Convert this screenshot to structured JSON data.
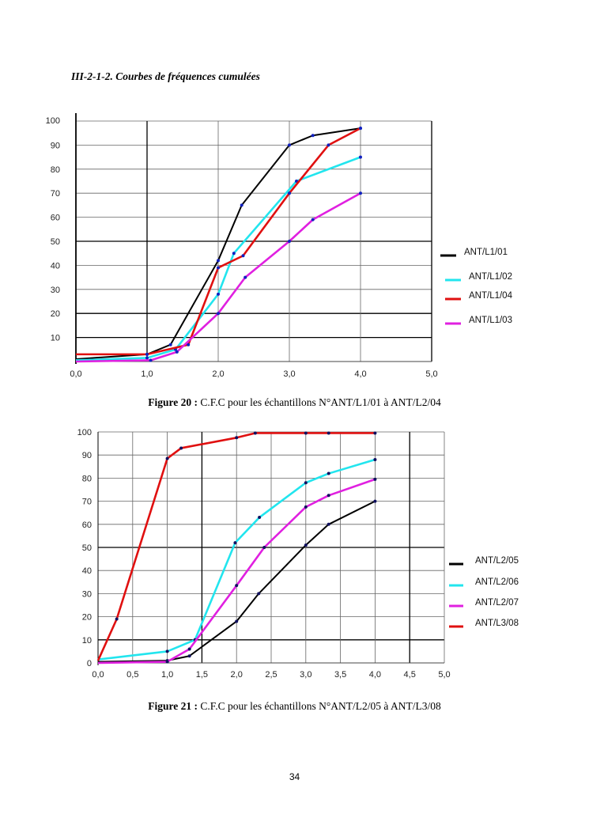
{
  "section_title": "III-2-1-2. Courbes de fréquences cumulées",
  "page_number": "34",
  "figures": [
    {
      "caption_label": "Figure 20 :",
      "caption_text": " C.F.C pour les échantillons N°ANT/L1/01 à ANT/L2/04"
    },
    {
      "caption_label": "Figure 21 :",
      "caption_text": " C.F.C pour les échantillons N°ANT/L2/05 à ANT/L3/08"
    }
  ],
  "chart_data": [
    {
      "type": "line",
      "title": "",
      "xlabel": "",
      "ylabel": "",
      "xlim": [
        0,
        5
      ],
      "ylim": [
        0,
        100
      ],
      "x_ticks": [
        "0,0",
        "1,0",
        "2,0",
        "3,0",
        "4,0",
        "5,0"
      ],
      "x_tick_values": [
        0,
        1,
        2,
        3,
        4,
        5
      ],
      "y_ticks": [
        "10",
        "20",
        "30",
        "40",
        "50",
        "60",
        "70",
        "80",
        "90",
        "100"
      ],
      "y_tick_values": [
        10,
        20,
        30,
        40,
        50,
        60,
        70,
        80,
        90,
        100
      ],
      "grid": true,
      "legend_position": "right",
      "series": [
        {
          "name": "ANT/L1/01",
          "color": "#000000",
          "points": [
            [
              0,
              1
            ],
            [
              1,
              3
            ],
            [
              1.33,
              7
            ],
            [
              2,
              42
            ],
            [
              2.33,
              65
            ],
            [
              3,
              90
            ],
            [
              3.33,
              94
            ],
            [
              4,
              97
            ]
          ]
        },
        {
          "name": "ANT/L1/02",
          "color": "#22e5ee",
          "points": [
            [
              0,
              0.5
            ],
            [
              1,
              1.5
            ],
            [
              1.4,
              5
            ],
            [
              2,
              28
            ],
            [
              2.22,
              45
            ],
            [
              3.1,
              75
            ],
            [
              4,
              85
            ]
          ]
        },
        {
          "name": "ANT/L1/04",
          "color": "#e01010",
          "points": [
            [
              0,
              3
            ],
            [
              1,
              3
            ],
            [
              1.58,
              7
            ],
            [
              2,
              39
            ],
            [
              2.35,
              44
            ],
            [
              3,
              70
            ],
            [
              3.55,
              90
            ],
            [
              4,
              97
            ]
          ]
        },
        {
          "name": "ANT/L1/03",
          "color": "#e020e0",
          "points": [
            [
              0,
              0
            ],
            [
              1.05,
              0.5
            ],
            [
              1.42,
              4
            ],
            [
              2,
              20
            ],
            [
              2.38,
              35
            ],
            [
              3,
              50
            ],
            [
              3.33,
              59
            ],
            [
              4,
              70
            ]
          ]
        }
      ]
    },
    {
      "type": "line",
      "title": "",
      "xlabel": "",
      "ylabel": "",
      "xlim": [
        0,
        5
      ],
      "ylim": [
        0,
        100
      ],
      "x_ticks": [
        "0,0",
        "0,5",
        "1,0",
        "1,5",
        "2,0",
        "2,5",
        "3,0",
        "3,5",
        "4,0",
        "4,5",
        "5,0"
      ],
      "x_tick_values": [
        0,
        0.5,
        1,
        1.5,
        2,
        2.5,
        3,
        3.5,
        4,
        4.5,
        5
      ],
      "y_ticks": [
        "0",
        "10",
        "20",
        "30",
        "40",
        "50",
        "60",
        "70",
        "80",
        "90",
        "100"
      ],
      "y_tick_values": [
        0,
        10,
        20,
        30,
        40,
        50,
        60,
        70,
        80,
        90,
        100
      ],
      "grid": true,
      "legend_position": "right",
      "series": [
        {
          "name": "ANT/L2/05",
          "color": "#000000",
          "points": [
            [
              0,
              0.5
            ],
            [
              1,
              1
            ],
            [
              1.32,
              3
            ],
            [
              2,
              18
            ],
            [
              2.32,
              30
            ],
            [
              3,
              51
            ],
            [
              3.33,
              60
            ],
            [
              4,
              70
            ]
          ]
        },
        {
          "name": "ANT/L2/06",
          "color": "#22e5ee",
          "points": [
            [
              0,
              1.5
            ],
            [
              1,
              5
            ],
            [
              1.4,
              10
            ],
            [
              1.98,
              52
            ],
            [
              2.33,
              63
            ],
            [
              3,
              78
            ],
            [
              3.33,
              82
            ],
            [
              4,
              88
            ]
          ]
        },
        {
          "name": "ANT/L2/07",
          "color": "#e020e0",
          "points": [
            [
              0,
              0
            ],
            [
              1,
              0.5
            ],
            [
              1.32,
              6
            ],
            [
              2,
              33.5
            ],
            [
              2.4,
              50
            ],
            [
              3,
              67.5
            ],
            [
              3.33,
              72.5
            ],
            [
              4,
              79.5
            ]
          ]
        },
        {
          "name": "ANT/L3/08",
          "color": "#e01010",
          "points": [
            [
              0,
              1
            ],
            [
              0.27,
              19
            ],
            [
              1,
              88.5
            ],
            [
              1.2,
              93
            ],
            [
              2,
              97.5
            ],
            [
              2.27,
              99.5
            ],
            [
              3,
              99.5
            ],
            [
              3.33,
              99.5
            ],
            [
              4,
              99.5
            ]
          ]
        }
      ]
    }
  ]
}
